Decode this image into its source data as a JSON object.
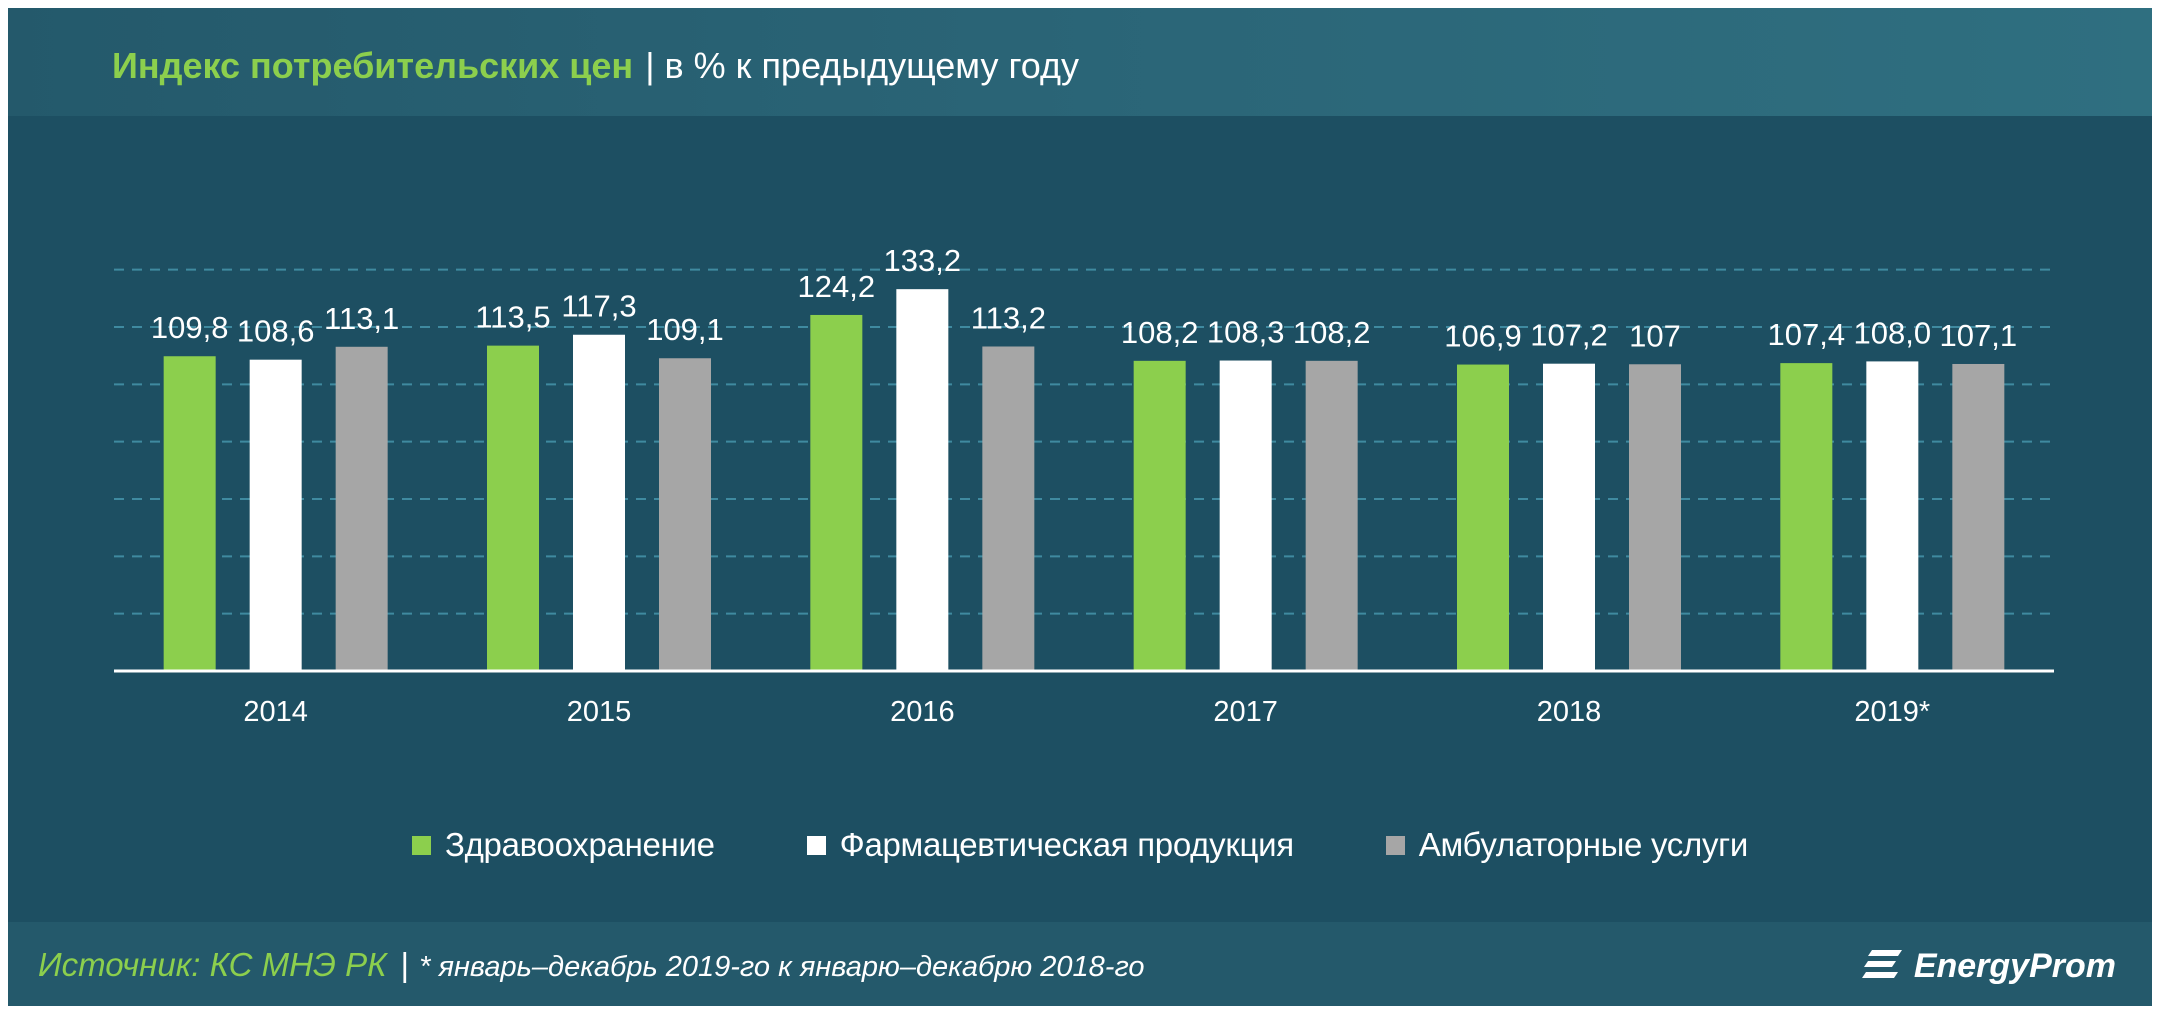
{
  "title": {
    "main": "Индекс потребительских цен",
    "separator": "|",
    "sub": "в % к предыдущему  году"
  },
  "colors": {
    "background": "#1d4f62",
    "header": "#2b6678",
    "title_accent": "#8ccf4d",
    "series": [
      "#8ccf4d",
      "#ffffff",
      "#a6a6a6"
    ],
    "gridline": "#3f8aa0"
  },
  "chart_data": {
    "type": "bar",
    "categories": [
      "2014",
      "2015",
      "2016",
      "2017",
      "2018",
      "2019*"
    ],
    "series": [
      {
        "name": "Здравоохранение",
        "values": [
          109.8,
          113.5,
          124.2,
          108.2,
          106.9,
          107.4
        ],
        "labels": [
          "109,8",
          "113,5",
          "124,2",
          "108,2",
          "106,9",
          "107,4"
        ],
        "color": "#8ccf4d"
      },
      {
        "name": "Фармацевтическая продукция",
        "values": [
          108.6,
          117.3,
          133.2,
          108.3,
          107.2,
          108.0
        ],
        "labels": [
          "108,6",
          "117,3",
          "133,2",
          "108,3",
          "107,2",
          "108,0"
        ],
        "color": "#ffffff"
      },
      {
        "name": "Амбулаторные услуги",
        "values": [
          113.1,
          109.1,
          113.2,
          108.2,
          107,
          107.1
        ],
        "labels": [
          "113,1",
          "109,1",
          "113,2",
          "108,2",
          "107",
          "107,1"
        ],
        "color": "#a6a6a6"
      }
    ],
    "ylim": [
      0,
      150
    ],
    "y_axis_visible": false,
    "grid": true,
    "grid_style": "dashed",
    "legend_position": "bottom"
  },
  "footer": {
    "source_label": "Источник: КС МНЭ РК",
    "separator": "|",
    "note": "* январь–декабрь 2019-го к январю–декабрю 2018-го",
    "logo_text": "EnergyProm",
    "logo_icon": "energyprom-logo-icon"
  }
}
